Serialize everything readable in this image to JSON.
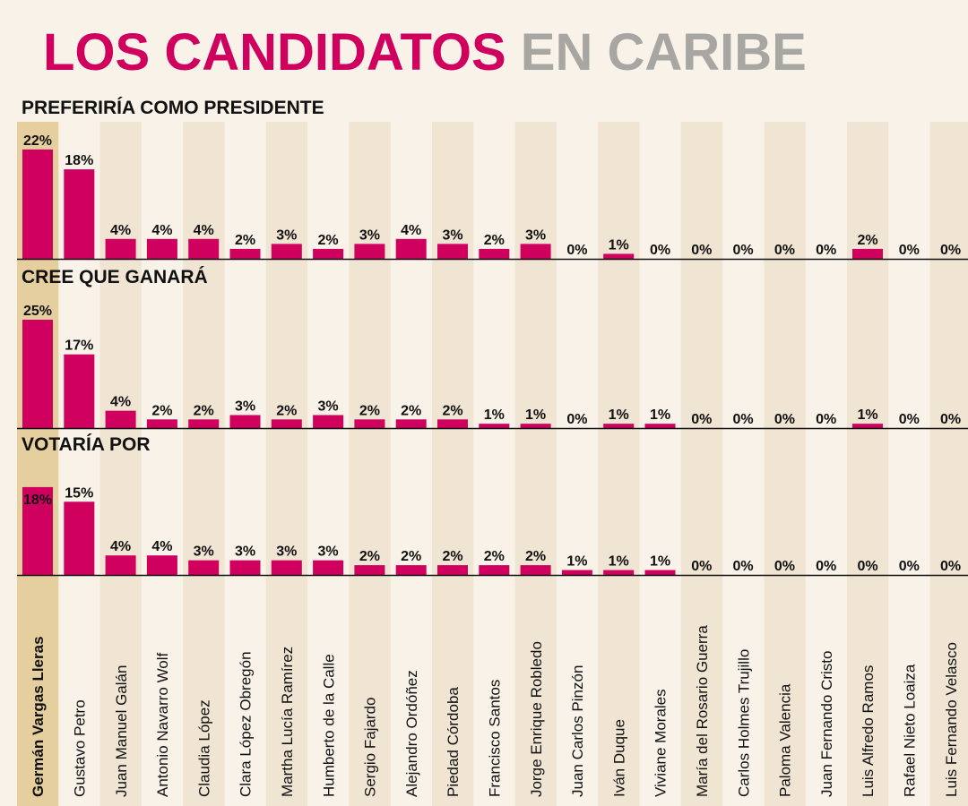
{
  "title": {
    "part1": "LOS CANDIDATOS",
    "part2": "EN CARIBE"
  },
  "colors": {
    "bar": "#d0005f",
    "band": "#f0e4d3",
    "highlight_band": "#e6cf9e",
    "title_accent": "#d0005f",
    "title_gray": "#a7a6a3",
    "background": "#f8f2e8"
  },
  "chart_data": {
    "type": "bar",
    "categories": [
      "Germán Vargas Lleras",
      "Gustavo Petro",
      "Juan Manuel Galán",
      "Antonio Navarro Wolf",
      "Claudia López",
      "Clara López Obregón",
      "Martha Lucía Ramírez",
      "Humberto de la Calle",
      "Sergio Fajardo",
      "Alejandro Ordóñez",
      "Piedad Córdoba",
      "Francisco Santos",
      "Jorge Enrique Robledo",
      "Juan Carlos Pinzón",
      "Iván Duque",
      "Viviane Morales",
      "María del Rosario Guerra",
      "Carlos Holmes Trujillo",
      "Paloma Valencia",
      "Juan Fernando Cristo",
      "Luis Alfredo Ramos",
      "Rafael Nieto Loaiza",
      "Luis Fernando Velasco"
    ],
    "highlight_index": 0,
    "value_suffix": "%",
    "series": [
      {
        "name": "PREFERIRÍA COMO PRESIDENTE",
        "values": [
          22,
          18,
          4,
          4,
          4,
          2,
          3,
          2,
          3,
          4,
          3,
          2,
          3,
          0,
          1,
          0,
          0,
          0,
          0,
          0,
          2,
          0,
          0
        ]
      },
      {
        "name": "CREE QUE GANARÁ",
        "values": [
          25,
          17,
          4,
          2,
          2,
          3,
          2,
          3,
          2,
          2,
          2,
          1,
          1,
          0,
          1,
          1,
          0,
          0,
          0,
          0,
          1,
          0,
          0
        ]
      },
      {
        "name": "VOTARÍA POR",
        "values": [
          18,
          15,
          4,
          4,
          3,
          3,
          3,
          3,
          2,
          2,
          2,
          2,
          2,
          1,
          1,
          1,
          0,
          0,
          0,
          0,
          0,
          0,
          0
        ]
      }
    ],
    "ylim": [
      0,
      25
    ]
  }
}
